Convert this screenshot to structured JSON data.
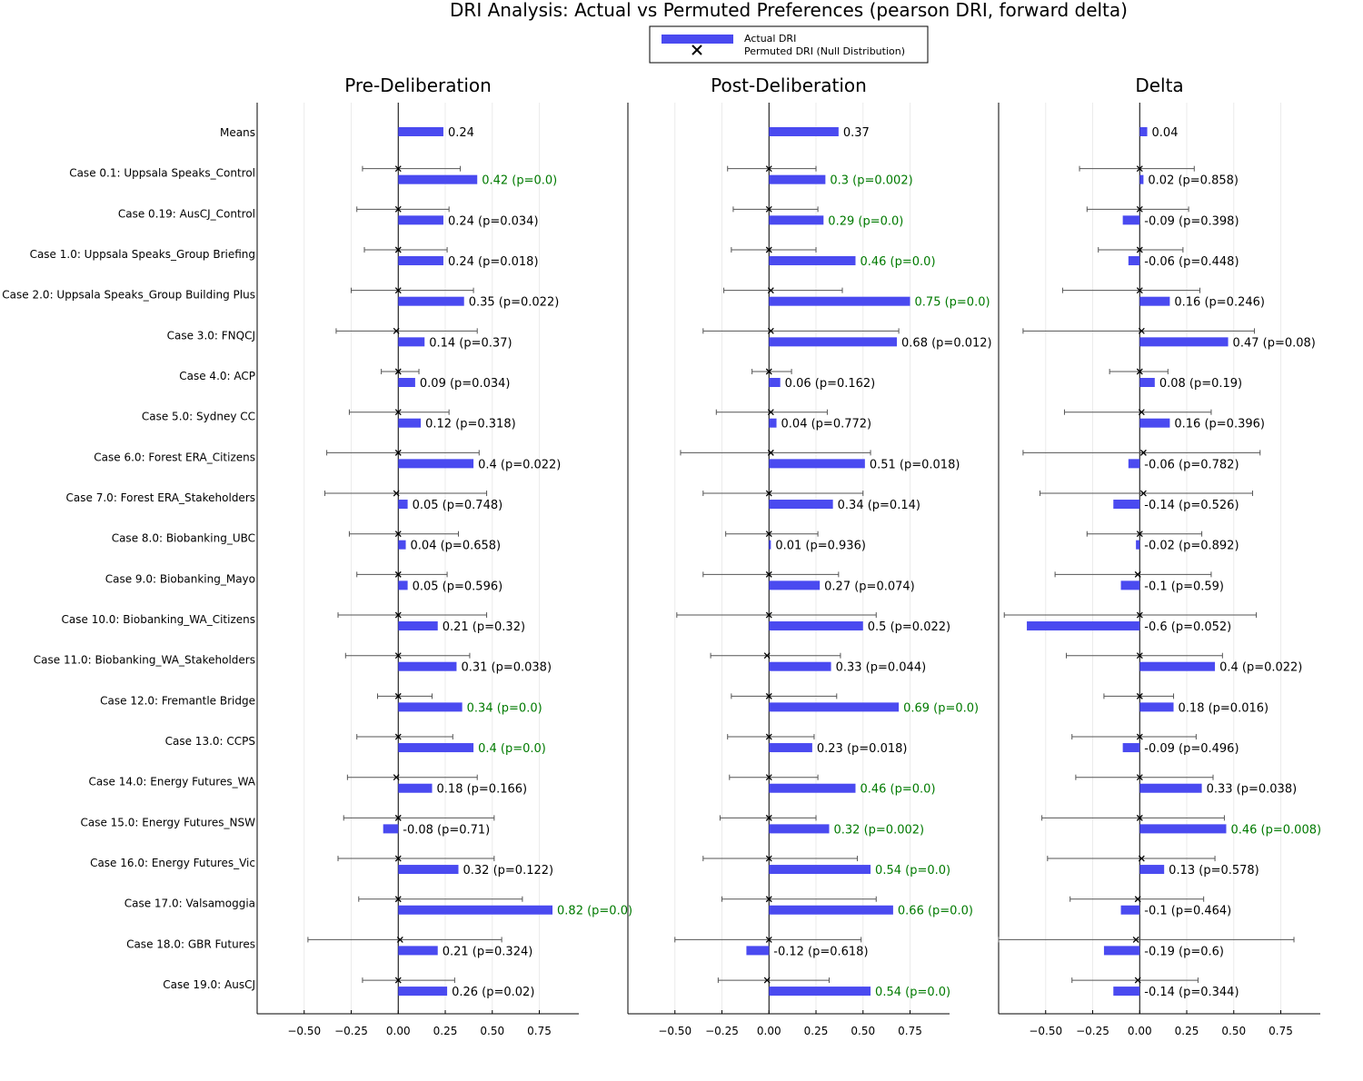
{
  "title": "DRI Analysis: Actual vs Permuted Preferences (pearson DRI, forward delta)",
  "legend": {
    "actual": "Actual DRI",
    "permuted": "Permuted DRI (Null Distribution)"
  },
  "colors": {
    "bar": "#4a4af0",
    "significant": "#007a00",
    "normal": "#000000",
    "whisker": "#555555",
    "grid": "#ebebeb"
  },
  "chart_data": {
    "type": "bar",
    "orientation": "horizontal",
    "categories": [
      "Means",
      "Case 0.1: Uppsala Speaks_Control",
      "Case 0.19: AusCJ_Control",
      "Case 1.0: Uppsala Speaks_Group Briefing",
      "Case 2.0: Uppsala Speaks_Group Building Plus",
      "Case 3.0: FNQCJ",
      "Case 4.0: ACP",
      "Case 5.0: Sydney CC",
      "Case 6.0: Forest ERA_Citizens",
      "Case 7.0: Forest ERA_Stakeholders",
      "Case 8.0: Biobanking_UBC",
      "Case 9.0: Biobanking_Mayo",
      "Case 10.0: Biobanking_WA_Citizens",
      "Case 11.0: Biobanking_WA_Stakeholders",
      "Case 12.0: Fremantle Bridge",
      "Case 13.0: CCPS",
      "Case 14.0: Energy Futures_WA",
      "Case 15.0: Energy Futures_NSW",
      "Case 16.0: Energy Futures_Vic",
      "Case 17.0: Valsamoggia",
      "Case 18.0: GBR Futures",
      "Case 19.0: AusCJ"
    ],
    "xticks": [
      "−0.50",
      "−0.25",
      "0.00",
      "0.25",
      "0.50",
      "0.75"
    ],
    "xtick_values": [
      -0.5,
      -0.25,
      0,
      0.25,
      0.5,
      0.75
    ],
    "xlim": [
      -0.75,
      0.96
    ],
    "grid": true,
    "legend_position": "top-center",
    "panels": [
      {
        "title": "Pre-Deliberation",
        "values": [
          0.24,
          0.42,
          0.24,
          0.24,
          0.35,
          0.14,
          0.09,
          0.12,
          0.4,
          0.05,
          0.04,
          0.05,
          0.21,
          0.31,
          0.34,
          0.4,
          0.18,
          -0.08,
          0.32,
          0.82,
          0.21,
          0.26
        ],
        "labels": [
          "0.24",
          "0.42 (p=0.0)",
          "0.24 (p=0.034)",
          "0.24 (p=0.018)",
          "0.35 (p=0.022)",
          "0.14 (p=0.37)",
          "0.09 (p=0.034)",
          "0.12 (p=0.318)",
          "0.4 (p=0.022)",
          "0.05 (p=0.748)",
          "0.04 (p=0.658)",
          "0.05 (p=0.596)",
          "0.21 (p=0.32)",
          "0.31 (p=0.038)",
          "0.34 (p=0.0)",
          "0.4 (p=0.0)",
          "0.18 (p=0.166)",
          "-0.08 (p=0.71)",
          "0.32 (p=0.122)",
          "0.82 (p=0.0)",
          "0.21 (p=0.324)",
          "0.26 (p=0.02)"
        ],
        "significant": [
          false,
          true,
          false,
          false,
          false,
          false,
          false,
          false,
          false,
          false,
          false,
          false,
          false,
          false,
          true,
          true,
          false,
          false,
          false,
          true,
          false,
          false
        ],
        "null_mean": [
          null,
          0.0,
          0.0,
          0.0,
          0.0,
          -0.01,
          0.0,
          0.0,
          0.0,
          -0.01,
          0.0,
          0.0,
          0.0,
          0.0,
          0.0,
          0.0,
          -0.01,
          0.0,
          0.0,
          0.0,
          0.01,
          0.0
        ],
        "null_low": [
          null,
          -0.19,
          -0.22,
          -0.18,
          -0.25,
          -0.33,
          -0.09,
          -0.26,
          -0.38,
          -0.39,
          -0.26,
          -0.22,
          -0.32,
          -0.28,
          -0.11,
          -0.22,
          -0.27,
          -0.29,
          -0.32,
          -0.21,
          -0.48,
          -0.19
        ],
        "null_high": [
          null,
          0.33,
          0.27,
          0.26,
          0.4,
          0.42,
          0.11,
          0.27,
          0.43,
          0.47,
          0.32,
          0.26,
          0.47,
          0.38,
          0.18,
          0.29,
          0.42,
          0.51,
          0.51,
          0.66,
          0.55,
          0.3
        ]
      },
      {
        "title": "Post-Deliberation",
        "values": [
          0.37,
          0.3,
          0.29,
          0.46,
          0.75,
          0.68,
          0.06,
          0.04,
          0.51,
          0.34,
          0.01,
          0.27,
          0.5,
          0.33,
          0.69,
          0.23,
          0.46,
          0.32,
          0.54,
          0.66,
          -0.12,
          0.54
        ],
        "labels": [
          "0.37",
          "0.3 (p=0.002)",
          "0.29 (p=0.0)",
          "0.46 (p=0.0)",
          "0.75 (p=0.0)",
          "0.68 (p=0.012)",
          "0.06 (p=0.162)",
          "0.04 (p=0.772)",
          "0.51 (p=0.018)",
          "0.34 (p=0.14)",
          "0.01 (p=0.936)",
          "0.27 (p=0.074)",
          "0.5 (p=0.022)",
          "0.33 (p=0.044)",
          "0.69 (p=0.0)",
          "0.23 (p=0.018)",
          "0.46 (p=0.0)",
          "0.32 (p=0.002)",
          "0.54 (p=0.0)",
          "0.66 (p=0.0)",
          "-0.12 (p=0.618)",
          "0.54 (p=0.0)"
        ],
        "significant": [
          false,
          true,
          true,
          true,
          true,
          false,
          false,
          false,
          false,
          false,
          false,
          false,
          false,
          false,
          true,
          false,
          true,
          true,
          true,
          true,
          false,
          true
        ],
        "null_mean": [
          null,
          0.0,
          0.0,
          0.0,
          0.01,
          0.01,
          0.0,
          0.01,
          0.01,
          0.0,
          0.0,
          0.0,
          0.0,
          -0.01,
          0.0,
          0.0,
          0.0,
          0.0,
          0.0,
          0.0,
          0.0,
          -0.01
        ],
        "null_low": [
          null,
          -0.22,
          -0.19,
          -0.2,
          -0.24,
          -0.35,
          -0.09,
          -0.28,
          -0.47,
          -0.35,
          -0.23,
          -0.35,
          -0.49,
          -0.31,
          -0.2,
          -0.22,
          -0.21,
          -0.26,
          -0.35,
          -0.25,
          -0.5,
          -0.27
        ],
        "null_high": [
          null,
          0.25,
          0.26,
          0.25,
          0.39,
          0.69,
          0.12,
          0.31,
          0.54,
          0.5,
          0.26,
          0.37,
          0.57,
          0.38,
          0.36,
          0.24,
          0.26,
          0.25,
          0.47,
          0.57,
          0.49,
          0.32
        ]
      },
      {
        "title": "Delta",
        "values": [
          0.04,
          0.02,
          -0.09,
          -0.06,
          0.16,
          0.47,
          0.08,
          0.16,
          -0.06,
          -0.14,
          -0.02,
          -0.1,
          -0.6,
          0.4,
          0.18,
          -0.09,
          0.33,
          0.46,
          0.13,
          -0.1,
          -0.19,
          -0.14
        ],
        "labels": [
          "0.04",
          "0.02 (p=0.858)",
          "-0.09 (p=0.398)",
          "-0.06 (p=0.448)",
          "0.16 (p=0.246)",
          "0.47 (p=0.08)",
          "0.08 (p=0.19)",
          "0.16 (p=0.396)",
          "-0.06 (p=0.782)",
          "-0.14 (p=0.526)",
          "-0.02 (p=0.892)",
          "-0.1 (p=0.59)",
          "-0.6 (p=0.052)",
          "0.4 (p=0.022)",
          "0.18 (p=0.016)",
          "-0.09 (p=0.496)",
          "0.33 (p=0.038)",
          "0.46 (p=0.008)",
          "0.13 (p=0.578)",
          "-0.1 (p=0.464)",
          "-0.19 (p=0.6)",
          "-0.14 (p=0.344)"
        ],
        "significant": [
          false,
          false,
          false,
          false,
          false,
          false,
          false,
          false,
          false,
          false,
          false,
          false,
          false,
          false,
          false,
          false,
          false,
          true,
          false,
          false,
          false,
          false
        ],
        "null_mean": [
          null,
          0.0,
          0.0,
          0.0,
          0.0,
          0.01,
          0.0,
          0.01,
          0.02,
          0.02,
          0.0,
          -0.01,
          0.0,
          0.0,
          0.0,
          0.0,
          0.0,
          0.0,
          0.01,
          -0.01,
          -0.02,
          -0.01
        ],
        "null_low": [
          null,
          -0.32,
          -0.28,
          -0.22,
          -0.41,
          -0.62,
          -0.16,
          -0.4,
          -0.62,
          -0.53,
          -0.28,
          -0.45,
          -0.72,
          -0.39,
          -0.19,
          -0.36,
          -0.34,
          -0.52,
          -0.49,
          -0.37,
          -0.75,
          -0.36
        ],
        "null_high": [
          null,
          0.29,
          0.26,
          0.23,
          0.32,
          0.61,
          0.15,
          0.38,
          0.64,
          0.6,
          0.33,
          0.38,
          0.62,
          0.44,
          0.18,
          0.3,
          0.39,
          0.45,
          0.4,
          0.34,
          0.82,
          0.31
        ]
      }
    ]
  }
}
